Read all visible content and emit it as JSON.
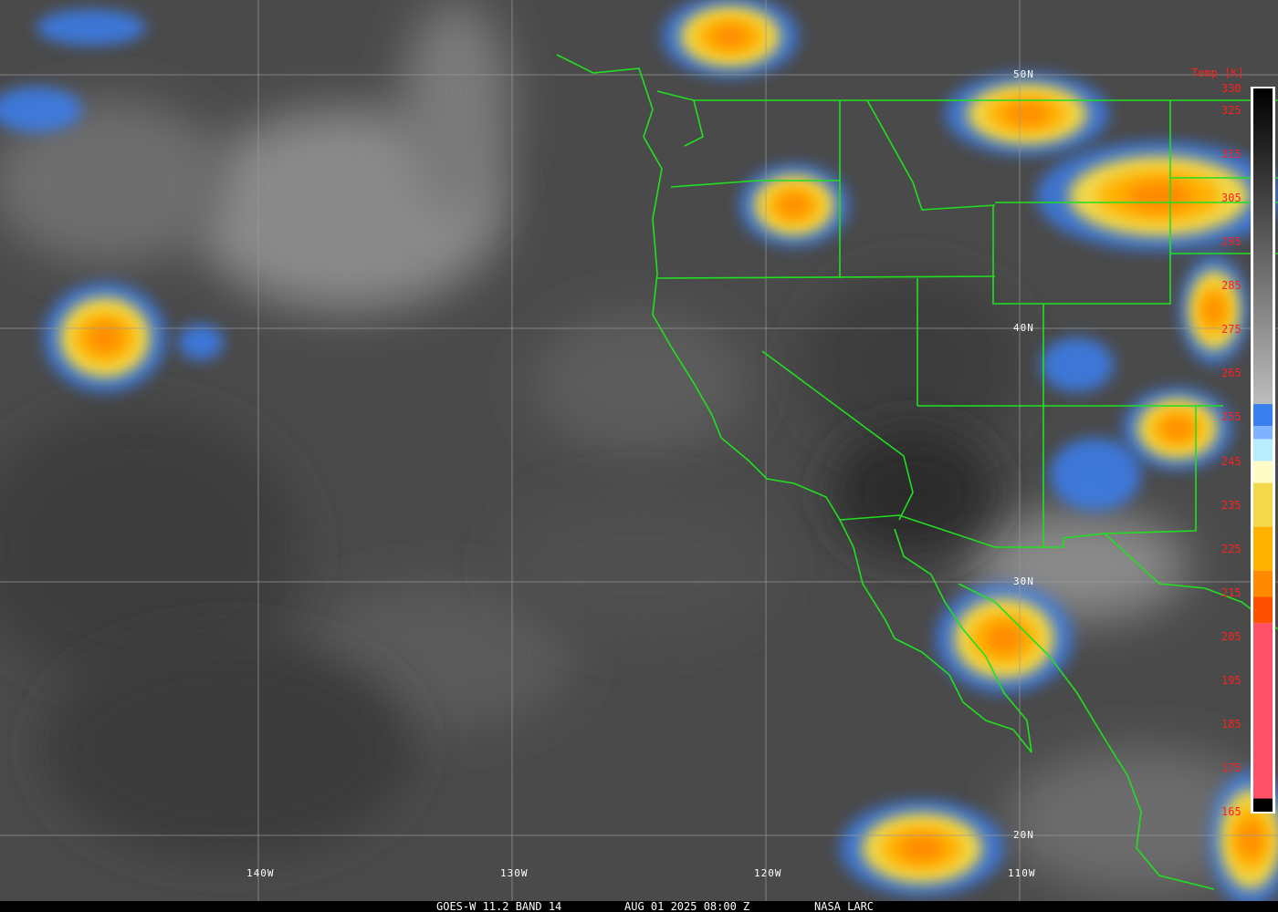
{
  "caption": {
    "satellite_band": "GOES-W 11.2 BAND 14",
    "datetime": "AUG 01 2025 08:00 Z",
    "source": "NASA LARC"
  },
  "grid": {
    "latitudes": [
      "50N",
      "40N",
      "30N",
      "20N"
    ],
    "longitudes": [
      "140W",
      "130W",
      "120W",
      "110W"
    ]
  },
  "colorbar": {
    "title": "Temp [K]",
    "ticks": [
      "330",
      "325",
      "315",
      "305",
      "295",
      "285",
      "275",
      "265",
      "255",
      "245",
      "235",
      "225",
      "215",
      "205",
      "195",
      "185",
      "175",
      "165"
    ],
    "range_k": [
      165,
      330
    ],
    "segments": [
      {
        "from": 330,
        "to": 258,
        "color": "gradient-black-to-gray"
      },
      {
        "from": 258,
        "to": 253,
        "color": "#3a7ff0"
      },
      {
        "from": 253,
        "to": 250,
        "color": "#7fb2ff"
      },
      {
        "from": 250,
        "to": 245,
        "color": "#b8ecff"
      },
      {
        "from": 245,
        "to": 240,
        "color": "#fffcc8"
      },
      {
        "from": 240,
        "to": 230,
        "color": "#f2d84a"
      },
      {
        "from": 230,
        "to": 220,
        "color": "#ffb000"
      },
      {
        "from": 220,
        "to": 214,
        "color": "#ff8a00"
      },
      {
        "from": 214,
        "to": 208,
        "color": "#ff5000"
      },
      {
        "from": 208,
        "to": 168,
        "color": "#ff5068"
      },
      {
        "from": 168,
        "to": 165,
        "color": "#000000"
      }
    ],
    "border_color": "#00ff00"
  },
  "overlay_color": "#20e020"
}
